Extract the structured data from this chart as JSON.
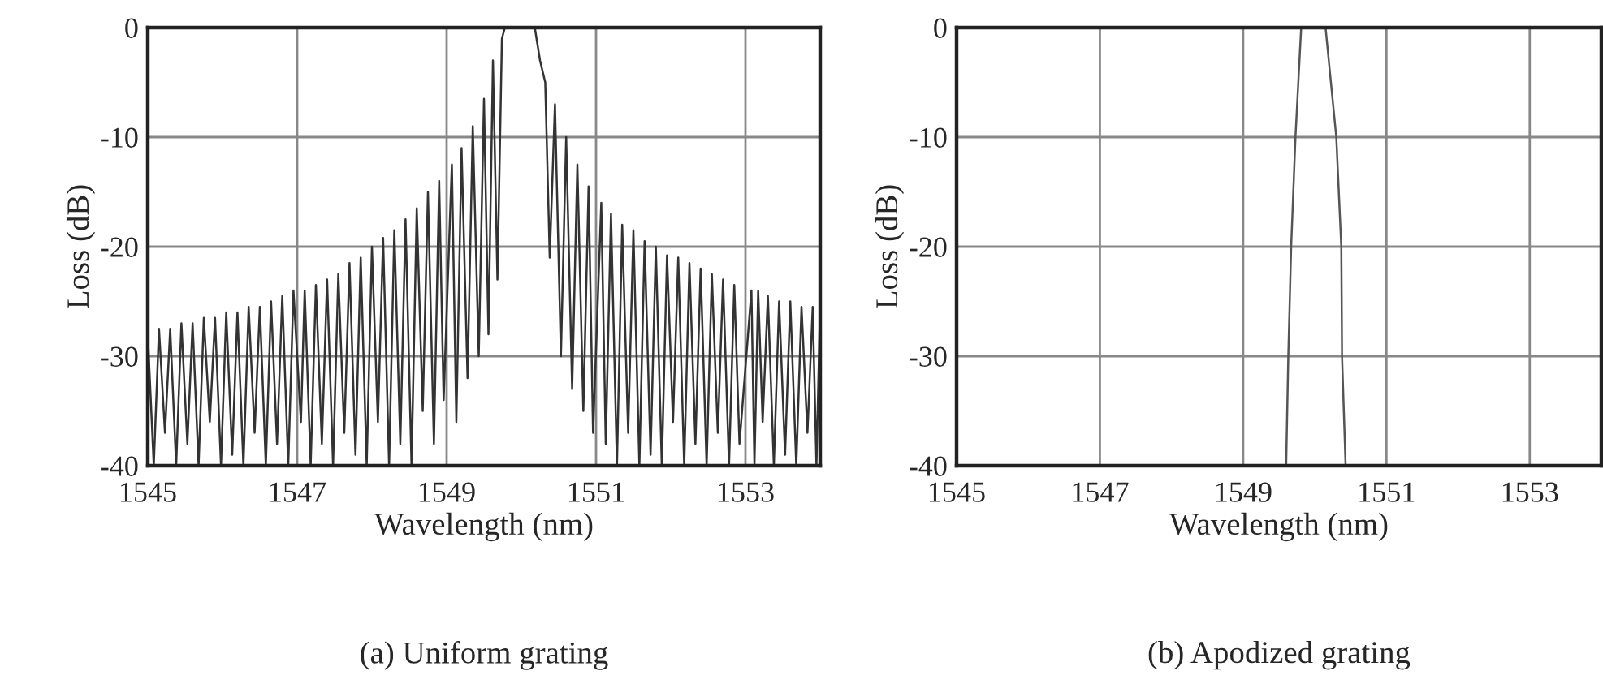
{
  "chart_data": [
    {
      "type": "line",
      "title": "(a) Uniform grating",
      "xlabel": "Wavelength (nm)",
      "ylabel": "Loss (dB)",
      "xlim": [
        1545,
        1554
      ],
      "xticks": [
        1545,
        1547,
        1549,
        1551,
        1553
      ],
      "ylim": [
        -40,
        0
      ],
      "yticks": [
        -40,
        -30,
        -20,
        -10,
        0
      ],
      "grid": true,
      "series": [
        {
          "color": "#333333",
          "x": [
            1545.0,
            1545.08,
            1545.15,
            1545.23,
            1545.3,
            1545.38,
            1545.45,
            1545.53,
            1545.6,
            1545.68,
            1545.75,
            1545.83,
            1545.9,
            1545.98,
            1546.05,
            1546.13,
            1546.2,
            1546.28,
            1546.35,
            1546.43,
            1546.5,
            1546.58,
            1546.65,
            1546.73,
            1546.8,
            1546.88,
            1546.95,
            1547.05,
            1547.1,
            1547.18,
            1547.25,
            1547.33,
            1547.4,
            1547.48,
            1547.55,
            1547.63,
            1547.7,
            1547.78,
            1547.85,
            1547.93,
            1548.0,
            1548.08,
            1548.15,
            1548.23,
            1548.3,
            1548.38,
            1548.45,
            1548.53,
            1548.6,
            1548.68,
            1548.75,
            1548.83,
            1548.9,
            1548.96,
            1549.07,
            1549.13,
            1549.2,
            1549.28,
            1549.35,
            1549.43,
            1549.5,
            1549.56,
            1549.62,
            1549.68,
            1549.74,
            1549.78,
            1549.95,
            1550.18,
            1550.25,
            1550.32,
            1550.38,
            1550.45,
            1550.53,
            1550.6,
            1550.68,
            1550.75,
            1550.83,
            1550.9,
            1550.96,
            1551.07,
            1551.13,
            1551.2,
            1551.28,
            1551.35,
            1551.43,
            1551.5,
            1551.58,
            1551.65,
            1551.73,
            1551.8,
            1551.88,
            1551.95,
            1552.03,
            1552.1,
            1552.18,
            1552.25,
            1552.33,
            1552.4,
            1552.48,
            1552.55,
            1552.63,
            1552.7,
            1552.78,
            1552.85,
            1552.92,
            1553.08,
            1553.12,
            1553.17,
            1553.23,
            1553.3,
            1553.38,
            1553.45,
            1553.53,
            1553.6,
            1553.68,
            1553.75,
            1553.83,
            1553.9,
            1553.95,
            1554.0
          ],
          "values": [
            -28,
            -40,
            -27.5,
            -37,
            -27.5,
            -40,
            -27,
            -38,
            -27,
            -40,
            -26.5,
            -36,
            -26.5,
            -40,
            -26,
            -39,
            -26,
            -40,
            -25.5,
            -37,
            -25.5,
            -40,
            -25,
            -38,
            -24.5,
            -40,
            -24,
            -36,
            -24,
            -40,
            -23.5,
            -38,
            -23,
            -40,
            -22.5,
            -37,
            -21.5,
            -39,
            -21,
            -40,
            -20,
            -36,
            -19.2,
            -40,
            -18.5,
            -38,
            -17.5,
            -40,
            -16.5,
            -35,
            -15,
            -38,
            -14,
            -34,
            -12.5,
            -36,
            -11,
            -32,
            -9,
            -30,
            -6.5,
            -28,
            -3,
            -23,
            -1,
            0,
            null,
            0,
            -3,
            -5,
            -21,
            -7,
            -30,
            -10,
            -33,
            -12.5,
            -35,
            -14.5,
            -37,
            -16,
            -38,
            -17,
            -40,
            -18,
            -37,
            -18.5,
            -40,
            -19.5,
            -39,
            -20,
            -40,
            -20.8,
            -36,
            -21,
            -40,
            -21.5,
            -38,
            -22,
            -40,
            -22.5,
            -37,
            -23,
            -40,
            -23.5,
            -38,
            -24,
            -40,
            -24,
            -36,
            -24.5,
            -40,
            -25,
            -39,
            -25,
            -40,
            -25.5,
            -37,
            -25.5,
            -40,
            -25
          ]
        }
      ]
    },
    {
      "type": "line",
      "title": "(b) Apodized grating",
      "xlabel": "Wavelength (nm)",
      "ylabel": "Loss (dB)",
      "xlim": [
        1545,
        1554
      ],
      "xticks": [
        1545,
        1547,
        1549,
        1551,
        1553
      ],
      "ylim": [
        -40,
        0
      ],
      "yticks": [
        -40,
        -30,
        -20,
        -10,
        0
      ],
      "grid": true,
      "series": [
        {
          "color": "#555555",
          "x": [
            1549.6,
            1549.63,
            1549.67,
            1549.73,
            1549.81,
            1550.15,
            1550.3,
            1550.37,
            1550.38,
            1550.43
          ],
          "values": [
            -40,
            -30,
            -20,
            -10,
            0,
            0,
            -10,
            -20,
            -30,
            -40
          ]
        }
      ]
    }
  ]
}
